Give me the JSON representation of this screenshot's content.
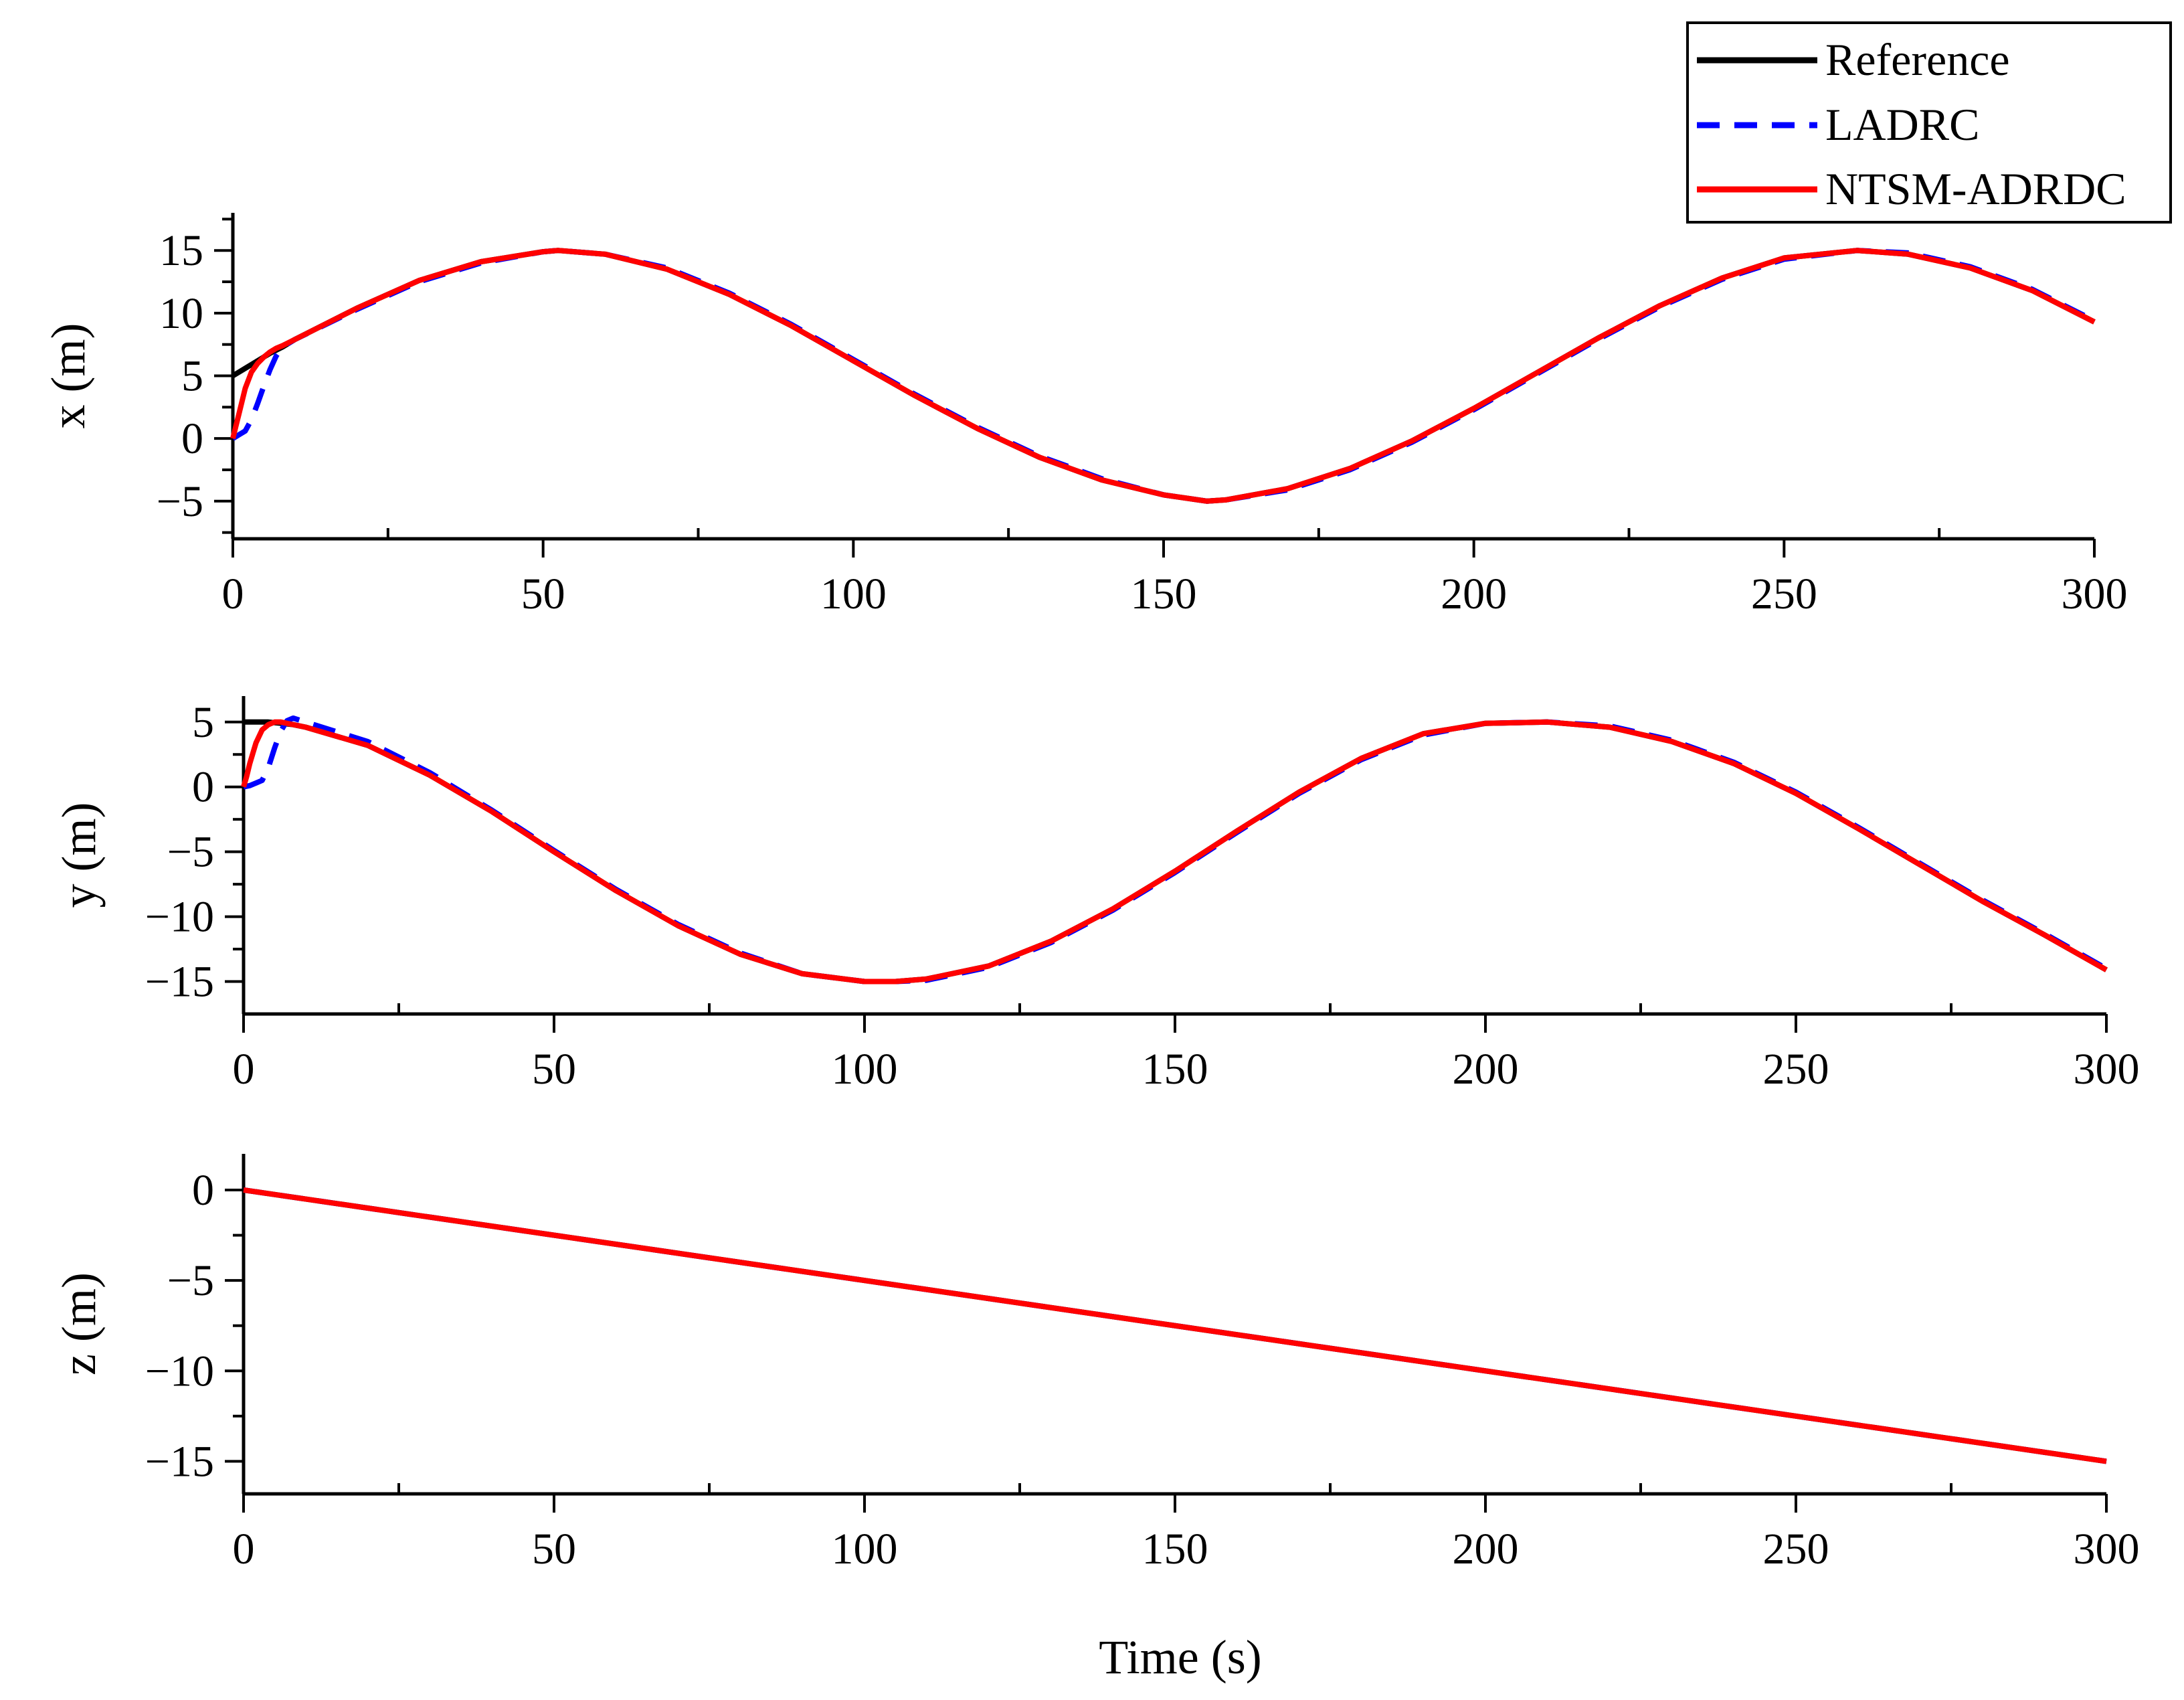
{
  "legend": {
    "items": [
      {
        "label": "Reference",
        "color": "#000000",
        "dash": "solid"
      },
      {
        "label": "LADRC",
        "color": "#0000ff",
        "dash": "dashed"
      },
      {
        "label": "NTSM-ADRDC",
        "color": "#ff0000",
        "dash": "solid"
      }
    ],
    "placement": "top-right"
  },
  "chart_data": [
    {
      "type": "line",
      "ylabel": "x (m)",
      "xlabel": "",
      "xlim": [
        0,
        300
      ],
      "ylim": [
        -8,
        18
      ],
      "xticks": [
        0,
        50,
        100,
        150,
        200,
        250,
        300
      ],
      "xtick_labels": [
        "0",
        "50",
        "100",
        "150",
        "200",
        "250",
        "300"
      ],
      "yticks": [
        -5,
        0,
        5,
        10,
        15
      ],
      "ytick_labels": [
        "−5",
        "0",
        "5",
        "10",
        "15"
      ],
      "grid": false,
      "series": [
        {
          "name": "Reference",
          "color": "#000000",
          "dash": "solid",
          "x": [
            0,
            2,
            4,
            6,
            8,
            10,
            20,
            30,
            40,
            50,
            52.4,
            60,
            70,
            80,
            90,
            100,
            110,
            120,
            130,
            140,
            150,
            157,
            160,
            170,
            180,
            190,
            200,
            210,
            220,
            230,
            240,
            250,
            261.8,
            270,
            280,
            290,
            300
          ],
          "y": [
            5.0,
            5.6,
            6.2,
            6.8,
            7.3,
            7.9,
            10.4,
            12.6,
            14.1,
            14.9,
            15.0,
            14.7,
            13.5,
            11.5,
            9.0,
            6.2,
            3.4,
            0.8,
            -1.5,
            -3.3,
            -4.5,
            -5.0,
            -4.9,
            -4.0,
            -2.4,
            -0.2,
            2.4,
            5.2,
            8.0,
            10.6,
            12.8,
            14.4,
            15.0,
            14.7,
            13.6,
            11.8,
            9.3
          ]
        },
        {
          "name": "LADRC",
          "color": "#0000ff",
          "dash": "dashed",
          "x": [
            0,
            1,
            2,
            3,
            4,
            5,
            6,
            7,
            8,
            10,
            20,
            30,
            40,
            50,
            52.4,
            60,
            70,
            80,
            90,
            100,
            110,
            120,
            130,
            140,
            150,
            157,
            160,
            170,
            180,
            190,
            200,
            210,
            220,
            230,
            240,
            250,
            261.8,
            270,
            280,
            290,
            300
          ],
          "y": [
            0.0,
            0.3,
            0.6,
            1.5,
            2.8,
            4.2,
            5.5,
            6.6,
            7.3,
            7.9,
            10.3,
            12.5,
            14.0,
            14.9,
            15.0,
            14.7,
            13.6,
            11.6,
            9.1,
            6.3,
            3.5,
            0.9,
            -1.4,
            -3.2,
            -4.5,
            -5.0,
            -4.9,
            -4.1,
            -2.5,
            -0.3,
            2.3,
            5.1,
            7.9,
            10.5,
            12.7,
            14.3,
            15.0,
            14.8,
            13.7,
            11.9,
            9.4
          ]
        },
        {
          "name": "NTSM-ADRDC",
          "color": "#ff0000",
          "dash": "solid",
          "x": [
            0,
            0.5,
            1,
            2,
            3,
            4,
            5,
            6,
            7,
            8,
            10,
            20,
            30,
            40,
            50,
            52.4,
            60,
            70,
            80,
            90,
            100,
            110,
            120,
            130,
            140,
            150,
            157,
            160,
            170,
            180,
            190,
            200,
            210,
            220,
            230,
            240,
            250,
            261.8,
            270,
            280,
            290,
            300
          ],
          "y": [
            0.0,
            1.0,
            2.0,
            4.0,
            5.3,
            6.0,
            6.5,
            6.9,
            7.2,
            7.4,
            7.9,
            10.4,
            12.6,
            14.1,
            14.9,
            15.0,
            14.7,
            13.5,
            11.5,
            9.0,
            6.2,
            3.4,
            0.8,
            -1.5,
            -3.3,
            -4.5,
            -5.0,
            -4.9,
            -4.0,
            -2.4,
            -0.2,
            2.4,
            5.2,
            8.0,
            10.6,
            12.8,
            14.4,
            15.0,
            14.7,
            13.6,
            11.8,
            9.3
          ]
        }
      ]
    },
    {
      "type": "line",
      "ylabel": "y (m)",
      "xlabel": "",
      "xlim": [
        0,
        300
      ],
      "ylim": [
        -17.5,
        7
      ],
      "xticks": [
        0,
        50,
        100,
        150,
        200,
        250,
        300
      ],
      "xtick_labels": [
        "0",
        "50",
        "100",
        "150",
        "200",
        "250",
        "300"
      ],
      "yticks": [
        -15,
        -10,
        -5,
        0,
        5
      ],
      "ytick_labels": [
        "−15",
        "−10",
        "−5",
        "0",
        "5"
      ],
      "grid": false,
      "series": [
        {
          "name": "Reference",
          "color": "#000000",
          "dash": "solid",
          "x": [
            0,
            2,
            4,
            6,
            8,
            10,
            20,
            30,
            40,
            50,
            60,
            70,
            80,
            90,
            100,
            105,
            110,
            120,
            130,
            140,
            150,
            160,
            170,
            180,
            190,
            200,
            210,
            220,
            230,
            240,
            250,
            260,
            270,
            280,
            290,
            300
          ],
          "y": [
            5.0,
            5.0,
            5.0,
            4.9,
            4.8,
            4.6,
            3.2,
            0.9,
            -1.9,
            -5.0,
            -8.0,
            -10.7,
            -12.9,
            -14.4,
            -15.0,
            -15.0,
            -14.8,
            -13.8,
            -11.9,
            -9.4,
            -6.5,
            -3.4,
            -0.4,
            2.2,
            4.1,
            4.9,
            5.0,
            4.6,
            3.5,
            1.8,
            -0.5,
            -3.2,
            -6.0,
            -8.8,
            -11.4,
            -14.1
          ]
        },
        {
          "name": "LADRC",
          "color": "#0000ff",
          "dash": "dashed",
          "x": [
            0,
            1,
            2,
            3,
            4,
            5,
            6,
            7,
            8,
            10,
            20,
            30,
            40,
            50,
            60,
            70,
            80,
            90,
            100,
            105,
            110,
            120,
            130,
            140,
            150,
            160,
            170,
            180,
            190,
            200,
            210,
            220,
            230,
            240,
            250,
            260,
            270,
            280,
            290,
            300
          ],
          "y": [
            0.0,
            0.1,
            0.3,
            0.5,
            1.5,
            3.0,
            4.3,
            5.1,
            5.3,
            5.0,
            3.5,
            1.1,
            -1.8,
            -4.9,
            -7.9,
            -10.6,
            -12.8,
            -14.4,
            -15.0,
            -15.0,
            -14.9,
            -13.9,
            -12.0,
            -9.5,
            -6.6,
            -3.5,
            -0.5,
            2.1,
            4.0,
            4.9,
            5.0,
            4.7,
            3.6,
            1.9,
            -0.4,
            -3.1,
            -5.9,
            -8.7,
            -11.3,
            -14.0
          ]
        },
        {
          "name": "NTSM-ADRDC",
          "color": "#ff0000",
          "dash": "solid",
          "x": [
            0,
            0.5,
            1,
            2,
            3,
            4,
            5,
            6,
            8,
            10,
            20,
            30,
            40,
            50,
            60,
            70,
            80,
            90,
            100,
            105,
            110,
            120,
            130,
            140,
            150,
            160,
            170,
            180,
            190,
            200,
            210,
            220,
            230,
            240,
            250,
            260,
            270,
            280,
            290,
            300
          ],
          "y": [
            0.0,
            0.8,
            1.8,
            3.4,
            4.4,
            4.8,
            5.0,
            5.0,
            4.8,
            4.6,
            3.2,
            0.9,
            -1.9,
            -5.0,
            -8.0,
            -10.7,
            -12.9,
            -14.4,
            -15.0,
            -15.0,
            -14.8,
            -13.8,
            -11.9,
            -9.4,
            -6.5,
            -3.4,
            -0.4,
            2.2,
            4.1,
            4.9,
            5.0,
            4.6,
            3.5,
            1.8,
            -0.5,
            -3.2,
            -6.0,
            -8.8,
            -11.4,
            -14.1
          ]
        }
      ]
    },
    {
      "type": "line",
      "ylabel": "z (m)",
      "xlabel": "Time (s)",
      "xlim": [
        0,
        300
      ],
      "ylim": [
        -16.8,
        2
      ],
      "xticks": [
        0,
        50,
        100,
        150,
        200,
        250,
        300
      ],
      "xtick_labels": [
        "0",
        "50",
        "100",
        "150",
        "200",
        "250",
        "300"
      ],
      "yticks": [
        -15,
        -10,
        -5,
        0
      ],
      "ytick_labels": [
        "−15",
        "−10",
        "−5",
        "0"
      ],
      "grid": false,
      "series": [
        {
          "name": "Reference",
          "color": "#000000",
          "dash": "solid",
          "x": [
            0,
            300
          ],
          "y": [
            0,
            -15
          ]
        },
        {
          "name": "LADRC",
          "color": "#0000ff",
          "dash": "dashed",
          "x": [
            0,
            300
          ],
          "y": [
            0,
            -15
          ]
        },
        {
          "name": "NTSM-ADRDC",
          "color": "#ff0000",
          "dash": "solid",
          "x": [
            0,
            300
          ],
          "y": [
            0,
            -15
          ]
        }
      ]
    }
  ]
}
